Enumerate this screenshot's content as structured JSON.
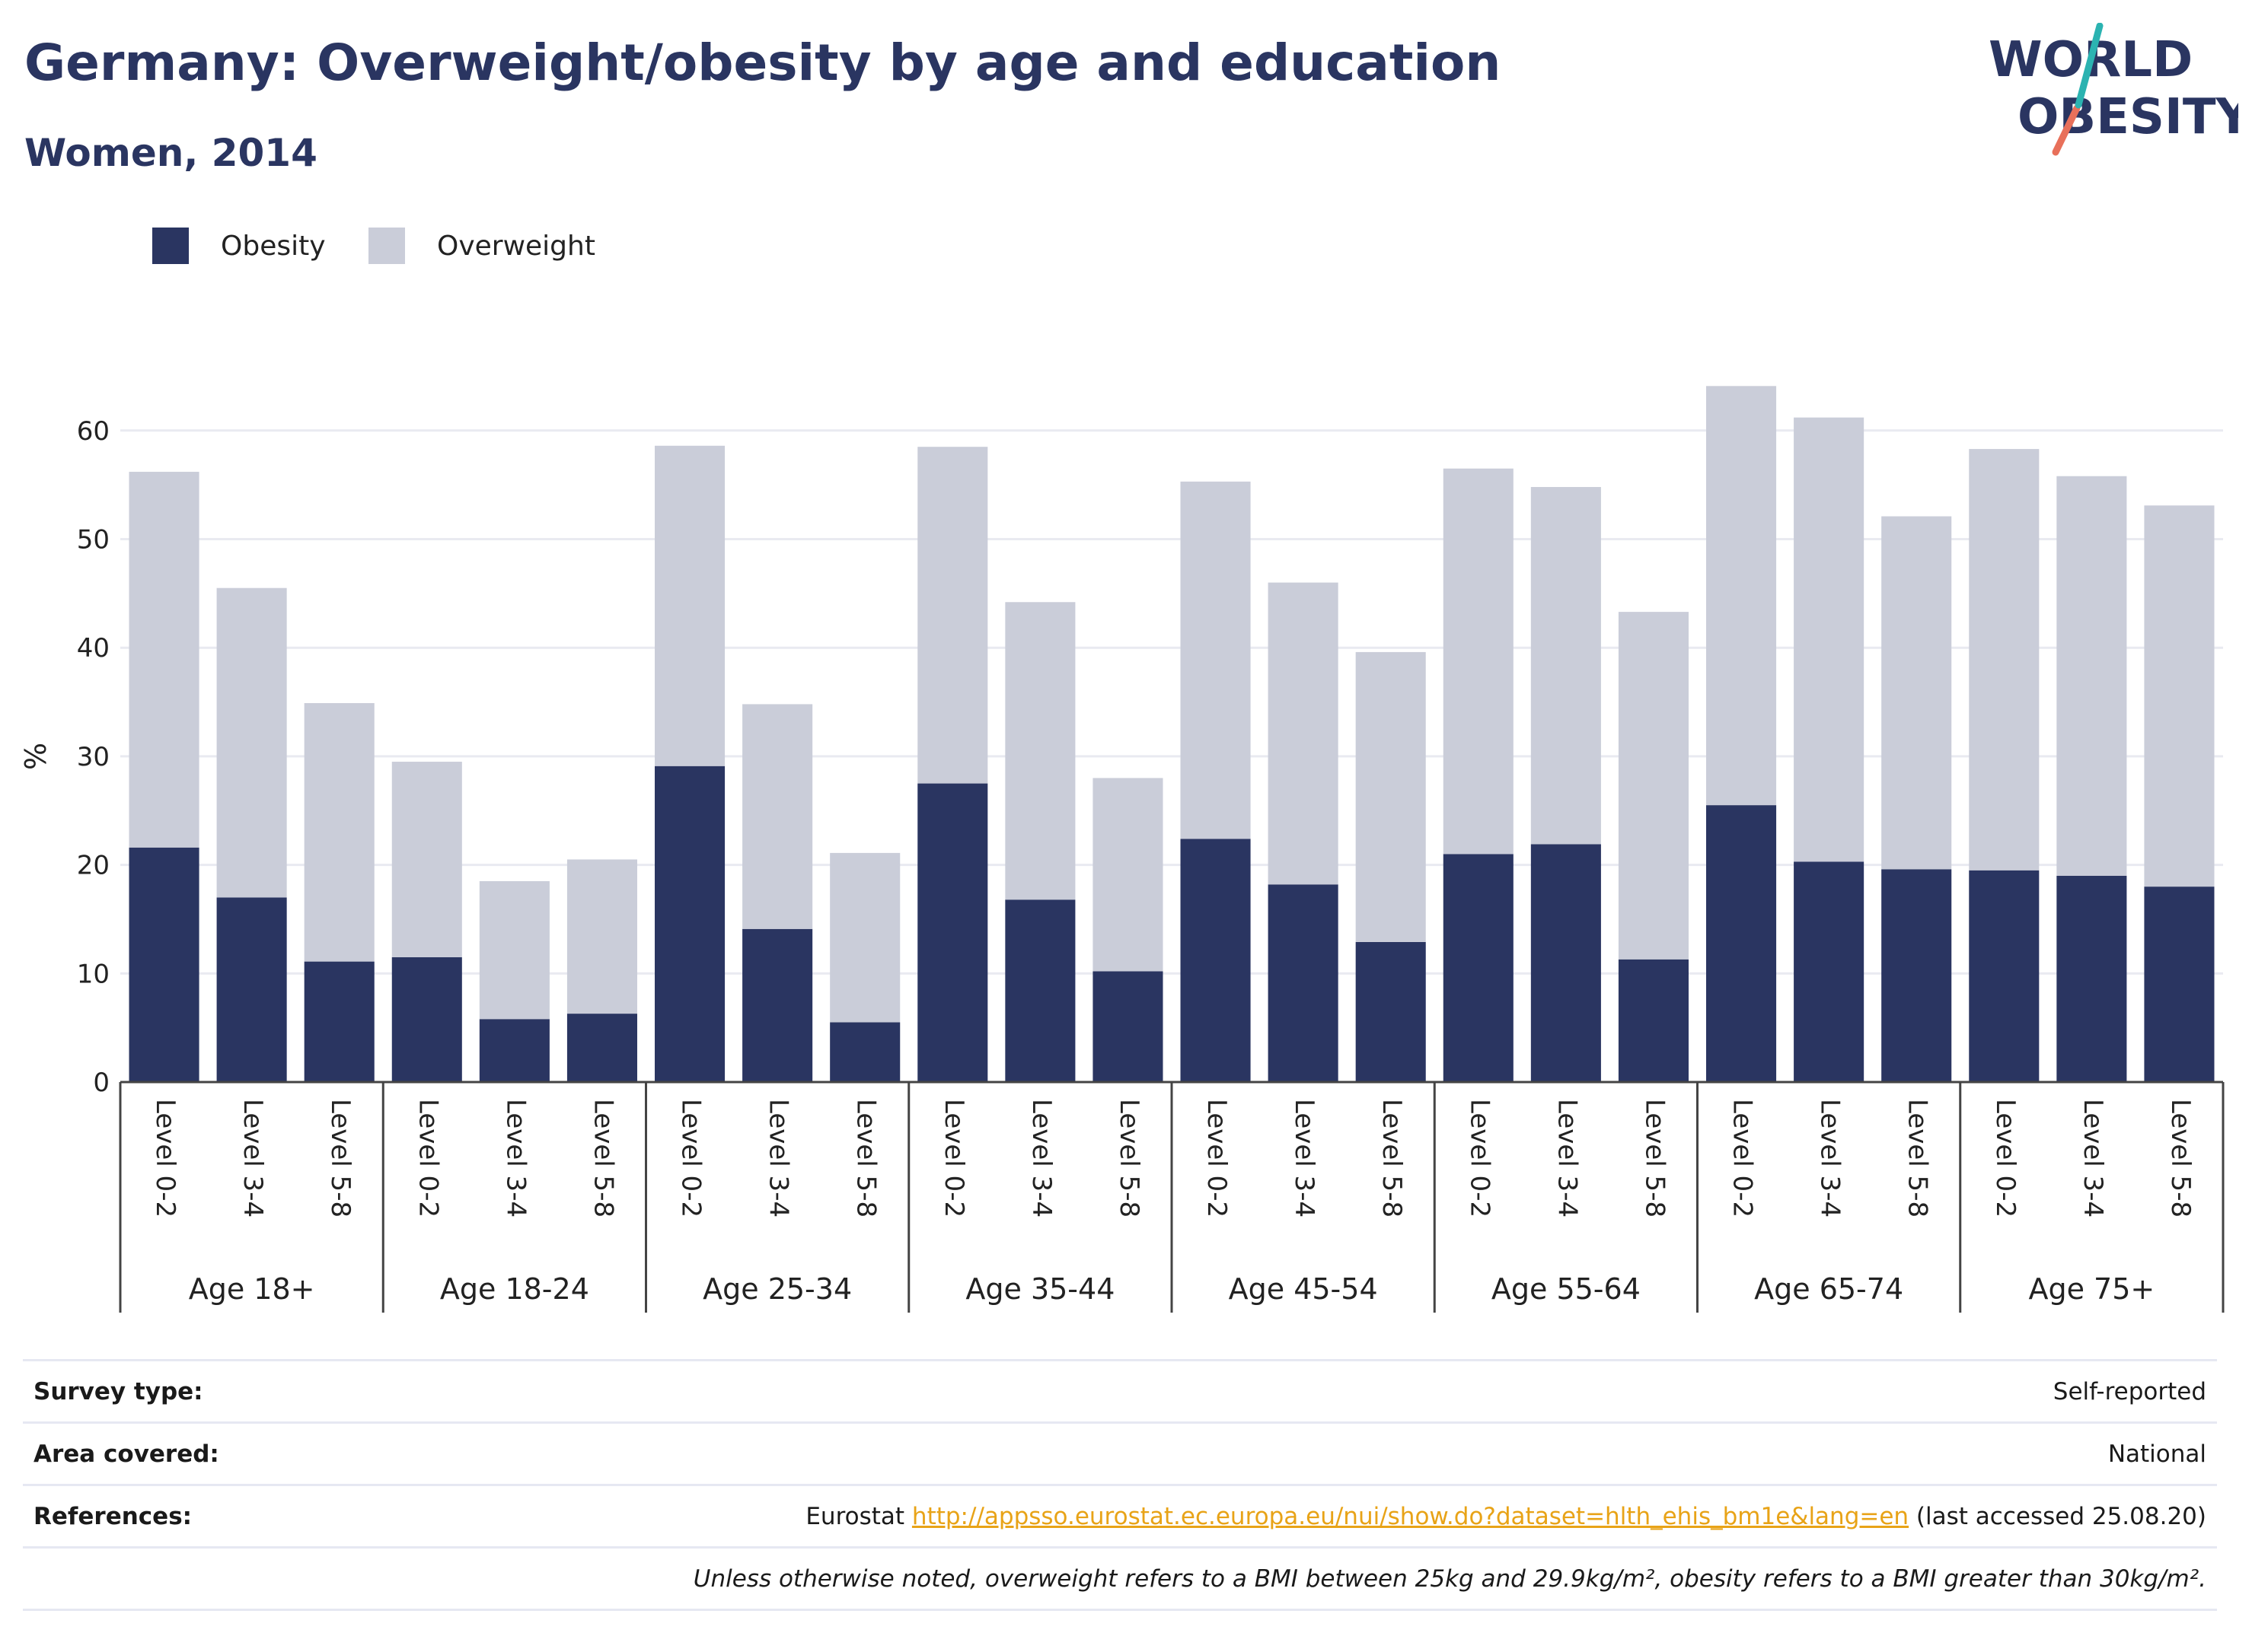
{
  "title": "Germany: Overweight/obesity by age and education",
  "subtitle": "Women, 2014",
  "logo": {
    "line1": "WORLD",
    "line2": "OBESITY"
  },
  "legend": [
    {
      "label": "Obesity",
      "color": "#2a3561"
    },
    {
      "label": "Overweight",
      "color": "#cacdd9"
    }
  ],
  "chart_data": {
    "type": "bar",
    "stacked": true,
    "ylabel": "%",
    "ylim": [
      0,
      65
    ],
    "yticks": [
      0,
      10,
      20,
      30,
      40,
      50,
      60
    ],
    "grid": true,
    "legend_position": "top-left",
    "groups": [
      {
        "label": "Age 18+",
        "categories": [
          "Level 0-2",
          "Level 3-4",
          "Level 5-8"
        ]
      },
      {
        "label": "Age 18-24",
        "categories": [
          "Level 0-2",
          "Level 3-4",
          "Level 5-8"
        ]
      },
      {
        "label": "Age 25-34",
        "categories": [
          "Level 0-2",
          "Level 3-4",
          "Level 5-8"
        ]
      },
      {
        "label": "Age 35-44",
        "categories": [
          "Level 0-2",
          "Level 3-4",
          "Level 5-8"
        ]
      },
      {
        "label": "Age 45-54",
        "categories": [
          "Level 0-2",
          "Level 3-4",
          "Level 5-8"
        ]
      },
      {
        "label": "Age 55-64",
        "categories": [
          "Level 0-2",
          "Level 3-4",
          "Level 5-8"
        ]
      },
      {
        "label": "Age 65-74",
        "categories": [
          "Level 0-2",
          "Level 3-4",
          "Level 5-8"
        ]
      },
      {
        "label": "Age 75+",
        "categories": [
          "Level 0-2",
          "Level 3-4",
          "Level 5-8"
        ]
      }
    ],
    "series": [
      {
        "name": "Obesity",
        "color": "#2a3561",
        "values": [
          21.6,
          17.0,
          11.1,
          11.5,
          5.8,
          6.3,
          29.1,
          14.1,
          5.5,
          27.5,
          16.8,
          10.2,
          22.4,
          18.2,
          12.9,
          21.0,
          21.9,
          11.3,
          25.5,
          20.3,
          19.6,
          19.5,
          19.0,
          18.0
        ]
      },
      {
        "name": "Overweight",
        "color": "#cacdd9",
        "values": [
          34.6,
          28.5,
          23.8,
          18.0,
          12.7,
          14.2,
          29.5,
          20.7,
          15.6,
          31.0,
          27.4,
          17.8,
          32.9,
          27.8,
          26.7,
          35.5,
          32.9,
          32.0,
          38.6,
          40.9,
          32.5,
          38.8,
          36.8,
          35.1
        ]
      }
    ]
  },
  "footer": {
    "survey_type_label": "Survey type:",
    "survey_type_value": "Self-reported",
    "area_label": "Area covered:",
    "area_value": "National",
    "references_label": "References:",
    "references_prefix": "Eurostat ",
    "references_link": "http://appsso.eurostat.ec.europa.eu/nui/show.do?dataset=hlth_ehis_bm1e&lang=en",
    "references_suffix": " (last accessed 25.08.20)",
    "note": "Unless otherwise noted, overweight refers to a BMI between 25kg and 29.9kg/m², obesity refers to a BMI greater than 30kg/m²."
  }
}
